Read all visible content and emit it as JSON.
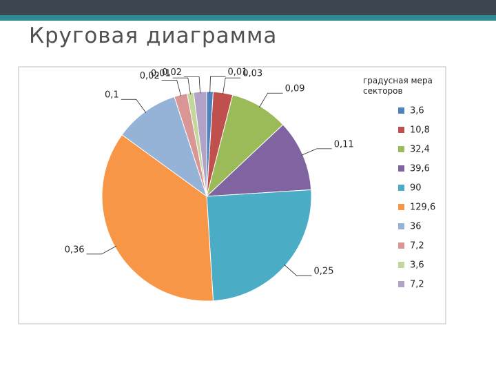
{
  "slide_title": "Круговая диаграмма",
  "chart_data": {
    "type": "pie",
    "legend_title": "градусная мера секторов",
    "categories": [
      "3,6",
      "10,8",
      "32,4",
      "39,6",
      "90",
      "129,6",
      "36",
      "7,2",
      "3,6",
      "7,2"
    ],
    "values": [
      0.01,
      0.03,
      0.09,
      0.11,
      0.25,
      0.36,
      0.1,
      0.02,
      0.01,
      0.02
    ],
    "value_labels": [
      "0,01",
      "0,03",
      "0,09",
      "0,11",
      "0,25",
      "0,36",
      "0,1",
      "0,02",
      "0,01",
      "0,02"
    ],
    "colors": [
      "#4f81bd",
      "#c0504d",
      "#9bbb59",
      "#8064a2",
      "#4bacc6",
      "#f79646",
      "#95b3d7",
      "#d99694",
      "#c3d69b",
      "#b2a2c7"
    ],
    "legend": "right"
  }
}
